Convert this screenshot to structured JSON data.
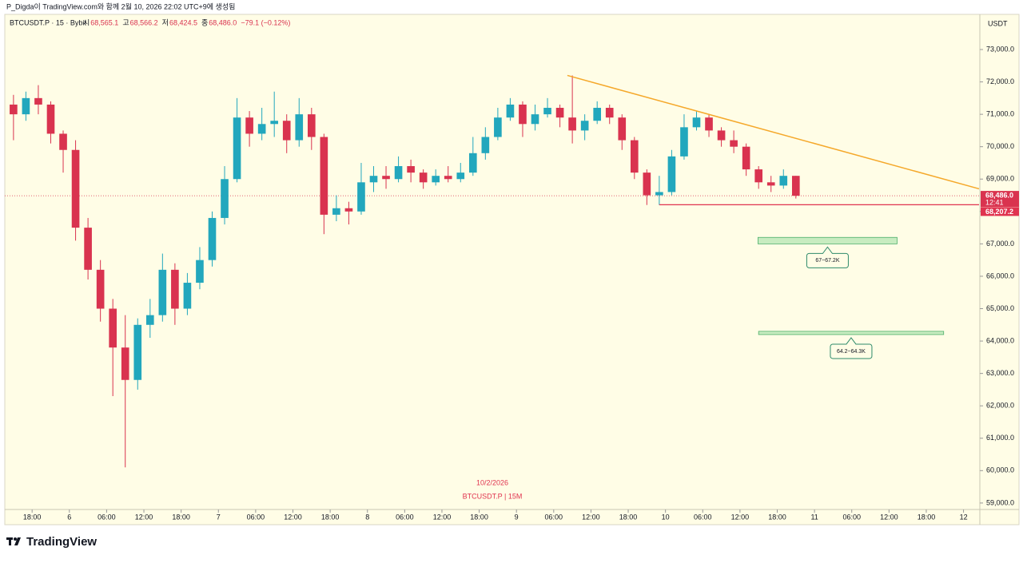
{
  "chart_data": {
    "type": "candlestick",
    "caption": "P_Digda이 TradingView.com와 함께 2월 10, 2026 22:02 UTC+9에 생성됨",
    "symbol": "BTCUSDT.P · 15 · Bybit",
    "ohlc_legend": [
      {
        "label": "시",
        "value": "68,565.1"
      },
      {
        "label": "고",
        "value": "68,566.2"
      },
      {
        "label": "저",
        "value": "68,424.5"
      },
      {
        "label": "종",
        "value": "68,486.0"
      }
    ],
    "change": "−79.1 (−0.12%)",
    "unit": "USDT",
    "watermark_date": "10/2/2026",
    "watermark_symbol": "BTCUSDT.P | 15M",
    "brand": "TradingView",
    "up_color": "#22a7bd",
    "down_color": "#d9334f",
    "x": [
      15,
      17,
      19,
      21,
      23,
      25,
      27,
      29,
      31,
      33,
      35,
      37,
      39,
      41,
      43,
      45,
      47,
      49,
      51,
      53,
      55,
      57,
      59,
      61,
      63,
      65,
      67,
      69,
      71,
      73,
      75,
      77,
      79,
      81,
      83,
      85,
      87,
      89,
      91,
      93,
      95,
      97,
      99,
      101,
      103,
      105,
      107,
      109,
      111,
      113,
      115,
      117,
      119,
      121,
      123,
      125,
      127,
      129,
      131,
      133,
      135,
      137,
      139,
      141
    ],
    "open": [
      71300,
      71000,
      71500,
      71300,
      70400,
      69900,
      67500,
      66200,
      65000,
      63800,
      62800,
      64500,
      64800,
      66200,
      65000,
      65800,
      66500,
      67800,
      69000,
      70900,
      70400,
      70700,
      70800,
      70200,
      71000,
      70300,
      67900,
      68100,
      68000,
      68900,
      69100,
      69000,
      69400,
      69200,
      68900,
      69100,
      69000,
      69200,
      69800,
      70300,
      70900,
      71300,
      70700,
      71000,
      71200,
      70900,
      70500,
      70800,
      71200,
      70900,
      70200,
      69200,
      68500,
      68600,
      69700,
      70600,
      70900,
      70500,
      70200,
      70000,
      69300,
      68900,
      68800,
      69100
    ],
    "high": [
      71600,
      71700,
      71900,
      71400,
      70500,
      70200,
      67800,
      66500,
      65300,
      64800,
      64700,
      65300,
      66700,
      66400,
      66100,
      66900,
      68000,
      69400,
      71500,
      71100,
      71200,
      71700,
      71000,
      71500,
      71200,
      70400,
      68500,
      68300,
      69500,
      69400,
      69400,
      69700,
      69600,
      69300,
      69300,
      69400,
      69500,
      70300,
      70600,
      71200,
      71500,
      71400,
      71300,
      71500,
      71300,
      72200,
      71000,
      71400,
      71300,
      71000,
      70300,
      69300,
      69100,
      69900,
      71000,
      71100,
      71000,
      70600,
      70500,
      70100,
      69400,
      69100,
      69300,
      69100
    ],
    "low": [
      70200,
      70800,
      71000,
      70100,
      69200,
      67100,
      65900,
      64600,
      62300,
      60100,
      62500,
      64100,
      64600,
      64500,
      64800,
      65600,
      66300,
      67600,
      68900,
      70000,
      70200,
      70300,
      69800,
      70000,
      69900,
      67300,
      67700,
      67600,
      67900,
      68600,
      68700,
      68900,
      68900,
      68700,
      68800,
      68900,
      68900,
      69100,
      69600,
      70200,
      70800,
      70300,
      70500,
      70900,
      70600,
      70100,
      70200,
      70700,
      70700,
      69900,
      69000,
      68200,
      68200,
      68500,
      69600,
      70500,
      70300,
      70000,
      69800,
      69100,
      68700,
      68600,
      68700,
      68400
    ],
    "close": [
      71000,
      71500,
      71300,
      70400,
      69900,
      67500,
      66200,
      65000,
      63800,
      62800,
      64500,
      64800,
      66200,
      65000,
      65800,
      66500,
      67800,
      69000,
      70900,
      70400,
      70700,
      70800,
      70200,
      71000,
      70300,
      67900,
      68100,
      68000,
      68900,
      69100,
      69000,
      69400,
      69200,
      68900,
      69100,
      69000,
      69200,
      69800,
      70300,
      70900,
      71300,
      70700,
      71000,
      71200,
      70900,
      70500,
      70800,
      71200,
      70900,
      70200,
      69200,
      68500,
      68600,
      69700,
      70600,
      70900,
      70500,
      70200,
      70000,
      69300,
      68900,
      68800,
      69100,
      68486
    ],
    "xlim": [
      13.6,
      170.5
    ],
    "xticks": [
      {
        "value": 18,
        "label": "18:00"
      },
      {
        "value": 24,
        "label": "6"
      },
      {
        "value": 30,
        "label": "06:00"
      },
      {
        "value": 36,
        "label": "12:00"
      },
      {
        "value": 42,
        "label": "18:00"
      },
      {
        "value": 48,
        "label": "7"
      },
      {
        "value": 54,
        "label": "06:00"
      },
      {
        "value": 60,
        "label": "12:00"
      },
      {
        "value": 66,
        "label": "18:00"
      },
      {
        "value": 72,
        "label": "8"
      },
      {
        "value": 78,
        "label": "06:00"
      },
      {
        "value": 84,
        "label": "12:00"
      },
      {
        "value": 90,
        "label": "18:00"
      },
      {
        "value": 96,
        "label": "9"
      },
      {
        "value": 102,
        "label": "06:00"
      },
      {
        "value": 108,
        "label": "12:00"
      },
      {
        "value": 114,
        "label": "18:00"
      },
      {
        "value": 120,
        "label": "10"
      },
      {
        "value": 126,
        "label": "06:00"
      },
      {
        "value": 132,
        "label": "12:00"
      },
      {
        "value": 138,
        "label": "18:00"
      },
      {
        "value": 144,
        "label": "11"
      },
      {
        "value": 150,
        "label": "06:00"
      },
      {
        "value": 156,
        "label": "12:00"
      },
      {
        "value": 162,
        "label": "18:00"
      },
      {
        "value": 168,
        "label": "12"
      }
    ],
    "ylim": [
      58800,
      74060
    ],
    "yticks": [
      {
        "value": 59000,
        "label": "59,000.0"
      },
      {
        "value": 60000,
        "label": "60,000.0"
      },
      {
        "value": 61000,
        "label": "61,000.0"
      },
      {
        "value": 62000,
        "label": "62,000.0"
      },
      {
        "value": 63000,
        "label": "63,000.0"
      },
      {
        "value": 64000,
        "label": "64,000.0"
      },
      {
        "value": 65000,
        "label": "65,000.0"
      },
      {
        "value": 66000,
        "label": "66,000.0"
      },
      {
        "value": 67000,
        "label": "67,000.0"
      },
      {
        "value": 68000,
        "label": "68,000.0"
      },
      {
        "value": 69000,
        "label": "69,000.0"
      },
      {
        "value": 70000,
        "label": "70,000.0"
      },
      {
        "value": 71000,
        "label": "71,000.0"
      },
      {
        "value": 72000,
        "label": "72,000.0"
      },
      {
        "value": 73000,
        "label": "73,000.0"
      }
    ],
    "trendline": {
      "x": [
        104.2,
        170.5
      ],
      "values": [
        72200,
        68700
      ],
      "color": "#f5a82a"
    },
    "support": {
      "x_start": 119,
      "value": 68207.2,
      "label": "68,207.2",
      "color": "#e0334f"
    },
    "last_price": {
      "value": 68486,
      "label": "68,486.0",
      "countdown": "12:41"
    },
    "zones": [
      {
        "x": [
          134.9,
          157.3
        ],
        "low": 67000,
        "high": 67200,
        "label": "67~67.2K"
      },
      {
        "x": [
          135,
          164.8
        ],
        "low": 64200,
        "high": 64300,
        "label": "64.2~64.3K"
      }
    ]
  }
}
